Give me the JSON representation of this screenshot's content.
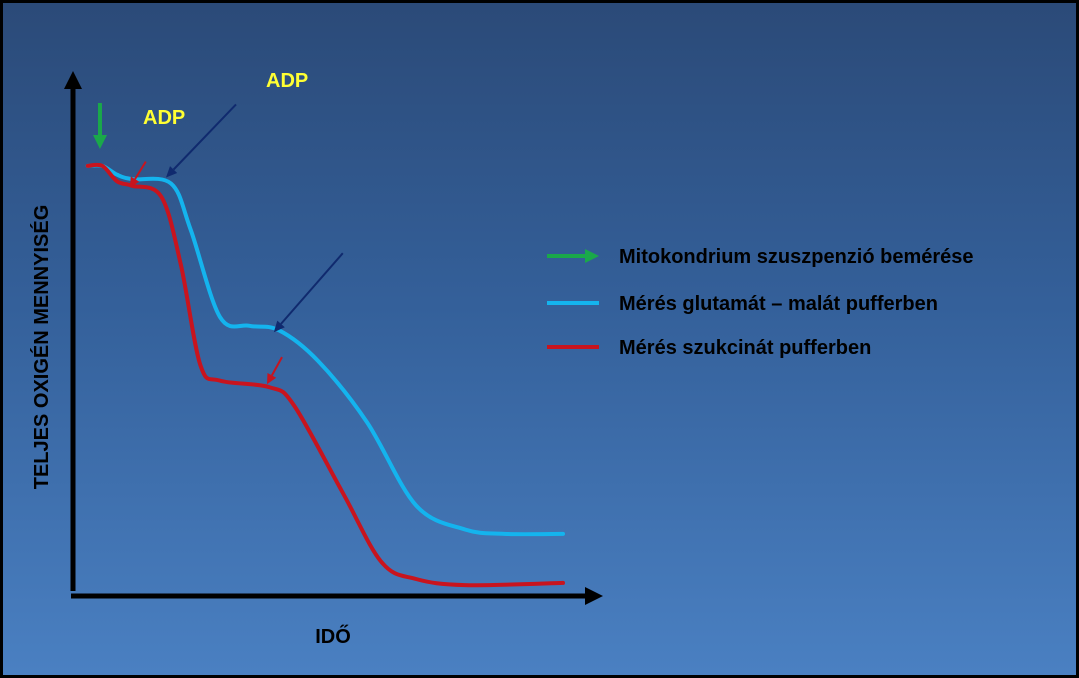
{
  "chart_data": {
    "type": "line",
    "title": "",
    "xlabel": "IDŐ",
    "ylabel": "TELJES OXIGÉN MENNYISÉG",
    "ticks": "none",
    "grid": false,
    "legend_position": "right",
    "series": [
      {
        "name": "Mérés glutamát – malát pufferben",
        "color": "#14b4ee",
        "values": [
          [
            0.03,
            0.975
          ],
          [
            0.06,
            0.975
          ],
          [
            0.09,
            0.955
          ],
          [
            0.12,
            0.945
          ],
          [
            0.2,
            0.935
          ],
          [
            0.24,
            0.83
          ],
          [
            0.3,
            0.63
          ],
          [
            0.36,
            0.61
          ],
          [
            0.42,
            0.6
          ],
          [
            0.5,
            0.53
          ],
          [
            0.6,
            0.39
          ],
          [
            0.7,
            0.2
          ],
          [
            0.8,
            0.145
          ],
          [
            0.88,
            0.135
          ],
          [
            1.0,
            0.135
          ]
        ]
      },
      {
        "name": "Mérés szukcinát pufferben",
        "color": "#c8141e",
        "values": [
          [
            0.03,
            0.975
          ],
          [
            0.06,
            0.975
          ],
          [
            0.09,
            0.94
          ],
          [
            0.12,
            0.93
          ],
          [
            0.18,
            0.905
          ],
          [
            0.22,
            0.75
          ],
          [
            0.26,
            0.52
          ],
          [
            0.3,
            0.485
          ],
          [
            0.4,
            0.47
          ],
          [
            0.45,
            0.43
          ],
          [
            0.55,
            0.23
          ],
          [
            0.63,
            0.07
          ],
          [
            0.7,
            0.032
          ],
          [
            0.8,
            0.018
          ],
          [
            1.0,
            0.023
          ]
        ]
      }
    ],
    "annotations": [
      {
        "type": "arrow",
        "name": "Mitokondrium szuszpenzió bemérése",
        "color": "#1aa84a",
        "x": 0.055
      },
      {
        "type": "arrow",
        "color": "#c8141e",
        "label": "ADP",
        "target": [
          0.12,
          0.93
        ]
      },
      {
        "type": "arrow",
        "color": "#102a6e",
        "label": "ADP",
        "target": [
          0.2,
          0.935
        ]
      },
      {
        "type": "arrow",
        "color": "#102a6e",
        "target": [
          0.42,
          0.6
        ]
      },
      {
        "type": "arrow",
        "color": "#c8141e",
        "target": [
          0.4,
          0.47
        ]
      }
    ]
  },
  "legend": [
    {
      "label": "Mitokondrium szuszpenzió bemérése",
      "color": "#1aa84a",
      "marker": "arrow"
    },
    {
      "label": "Mérés glutamát – malát pufferben",
      "color": "#14b4ee",
      "marker": "line"
    },
    {
      "label": "Mérés szukcinát pufferben",
      "color": "#c8141e",
      "marker": "line"
    }
  ],
  "adp_labels": [
    "ADP",
    "ADP"
  ],
  "colors": {
    "axis": "#000000",
    "adp_text": "#ffff33",
    "bg_top": "#2b4a78",
    "bg_bottom": "#4a80c2"
  }
}
